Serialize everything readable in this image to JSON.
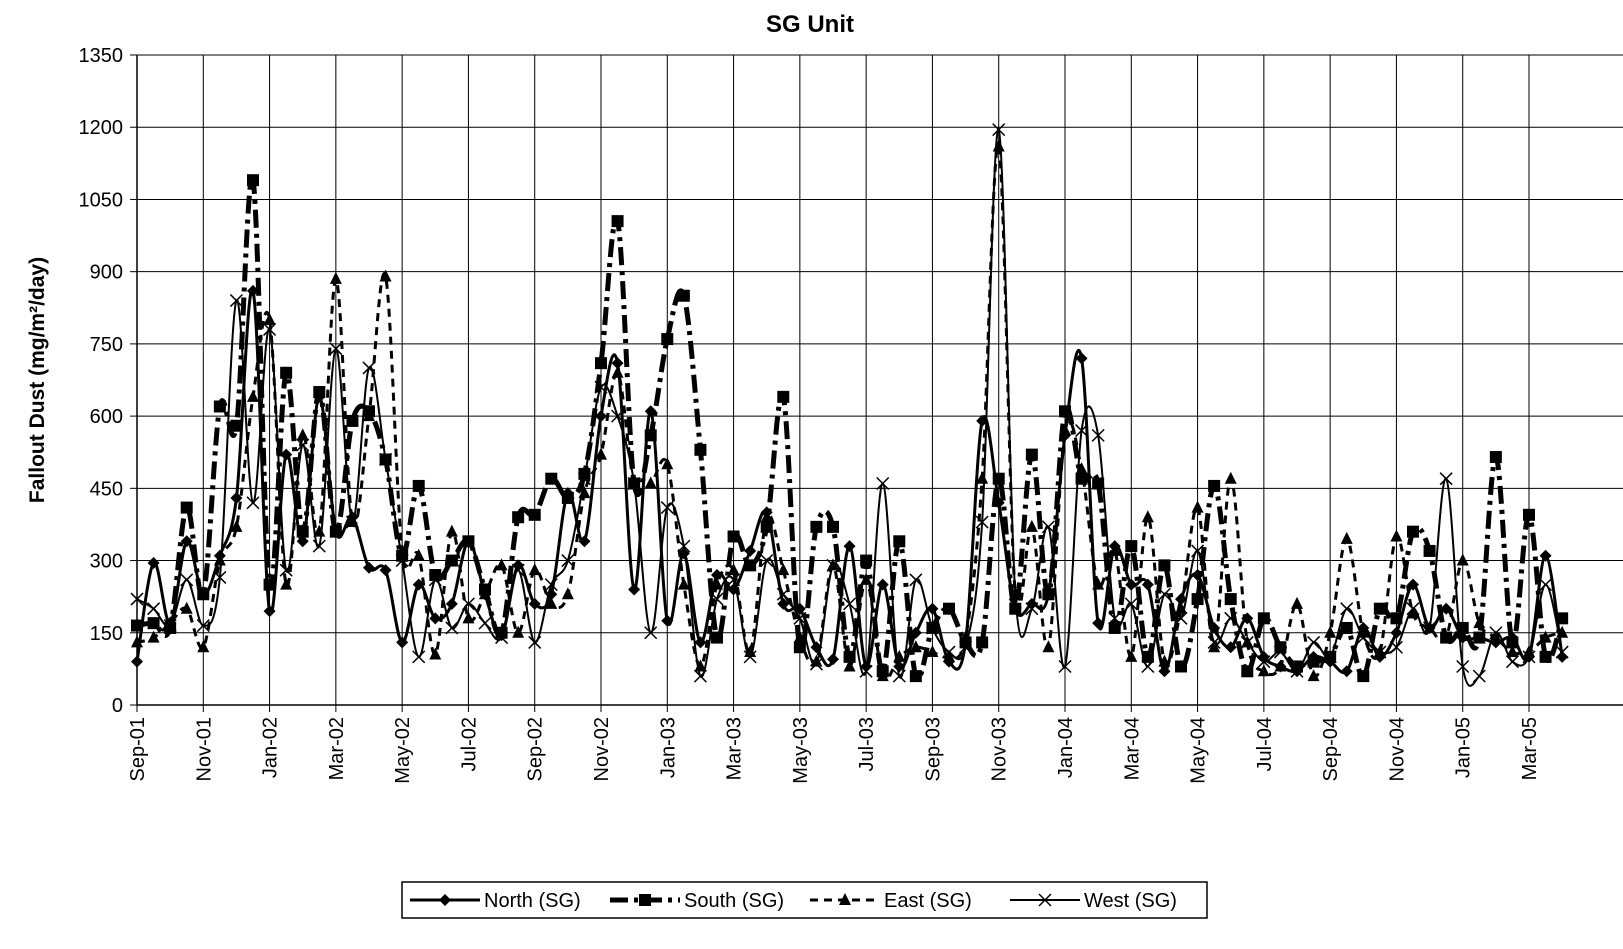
{
  "chart_data": {
    "type": "line",
    "title": "SG Unit",
    "y_label": "Fallout Dust (mg/m²/day)",
    "categories": [
      "Sep-01",
      null,
      null,
      null,
      "Nov-01",
      null,
      null,
      null,
      "Jan-02",
      null,
      null,
      null,
      "Mar-02",
      null,
      null,
      null,
      "May-02",
      null,
      null,
      null,
      "Jul-02",
      null,
      null,
      null,
      "Sep-02",
      null,
      null,
      null,
      "Nov-02",
      null,
      null,
      null,
      "Jan-03",
      null,
      null,
      null,
      "Mar-03",
      null,
      null,
      null,
      "May-03",
      null,
      null,
      null,
      "Jul-03",
      null,
      null,
      null,
      "Sep-03",
      null,
      null,
      null,
      "Nov-03",
      null,
      null,
      null,
      "Jan-04",
      null,
      null,
      null,
      "Mar-04",
      null,
      null,
      null,
      "May-04",
      null,
      null,
      null,
      "Jul-04",
      null,
      null,
      null,
      "Sep-04",
      null,
      null,
      null,
      "Nov-04",
      null,
      null,
      null,
      "Jan-05",
      null,
      null,
      null,
      "Mar-05",
      null,
      null
    ],
    "series": [
      {
        "name": "North (SG)",
        "color": "#000000",
        "values": [
          90,
          295,
          170,
          340,
          230,
          310,
          430,
          860,
          195,
          520,
          340,
          640,
          360,
          390,
          285,
          280,
          130,
          250,
          180,
          210,
          340,
          230,
          145,
          290,
          210,
          230,
          440,
          340,
          600,
          710,
          240,
          610,
          175,
          315,
          130,
          270,
          240,
          320,
          400,
          210,
          200,
          120,
          95,
          330,
          80,
          250,
          80,
          150,
          200,
          90,
          130,
          590,
          420,
          200,
          210,
          230,
          560,
          720,
          170,
          330,
          250,
          250,
          70,
          220,
          270,
          160,
          120,
          180,
          100,
          80,
          70,
          100,
          90,
          70,
          160,
          100,
          150,
          250,
          160,
          200,
          140,
          140,
          130,
          140,
          100,
          310,
          100
        ]
      },
      {
        "name": "South (SG)",
        "color": "#000000",
        "values": [
          165,
          170,
          160,
          410,
          230,
          620,
          580,
          1090,
          250,
          690,
          360,
          650,
          360,
          590,
          610,
          510,
          310,
          455,
          270,
          300,
          340,
          240,
          150,
          390,
          395,
          470,
          430,
          480,
          710,
          1005,
          460,
          560,
          760,
          850,
          530,
          140,
          350,
          290,
          370,
          640,
          120,
          370,
          370,
          100,
          300,
          70,
          340,
          60,
          160,
          200,
          130,
          130,
          470,
          200,
          520,
          230,
          610,
          470,
          460,
          160,
          330,
          100,
          290,
          80,
          220,
          455,
          220,
          70,
          180,
          120,
          80,
          90,
          100,
          160,
          60,
          200,
          180,
          360,
          320,
          140,
          160,
          140,
          515,
          130,
          395,
          100,
          180
        ]
      },
      {
        "name": "East (SG)",
        "color": "#000000",
        "values": [
          130,
          140,
          170,
          200,
          120,
          300,
          370,
          640,
          800,
          250,
          560,
          360,
          885,
          380,
          600,
          890,
          320,
          310,
          105,
          360,
          180,
          230,
          290,
          150,
          280,
          210,
          230,
          440,
          520,
          690,
          460,
          460,
          500,
          250,
          80,
          250,
          280,
          110,
          390,
          280,
          140,
          90,
          290,
          80,
          260,
          60,
          100,
          120,
          110,
          100,
          140,
          470,
          1160,
          230,
          370,
          120,
          570,
          490,
          250,
          320,
          100,
          390,
          90,
          200,
          410,
          120,
          470,
          130,
          70,
          80,
          210,
          60,
          150,
          345,
          150,
          110,
          350,
          190,
          160,
          140,
          300,
          170,
          140,
          110,
          110,
          140,
          150
        ]
      },
      {
        "name": "West (SG)",
        "color": "#000000",
        "values": [
          220,
          200,
          165,
          260,
          165,
          265,
          840,
          420,
          780,
          280,
          540,
          330,
          740,
          380,
          700,
          510,
          300,
          100,
          260,
          160,
          210,
          170,
          140,
          280,
          130,
          250,
          300,
          470,
          660,
          600,
          460,
          150,
          410,
          330,
          60,
          220,
          260,
          100,
          300,
          230,
          180,
          85,
          290,
          210,
          70,
          460,
          60,
          260,
          160,
          110,
          120,
          380,
          1195,
          230,
          200,
          370,
          80,
          570,
          560,
          180,
          210,
          80,
          230,
          180,
          320,
          130,
          180,
          130,
          90,
          110,
          70,
          130,
          100,
          200,
          140,
          110,
          120,
          200,
          160,
          470,
          80,
          60,
          150,
          90,
          100,
          250,
          110
        ]
      }
    ],
    "ylim": [
      0,
      1350
    ],
    "yticks": [
      0,
      150,
      300,
      450,
      600,
      750,
      900,
      1050,
      1200,
      1350
    ],
    "grid": true
  }
}
